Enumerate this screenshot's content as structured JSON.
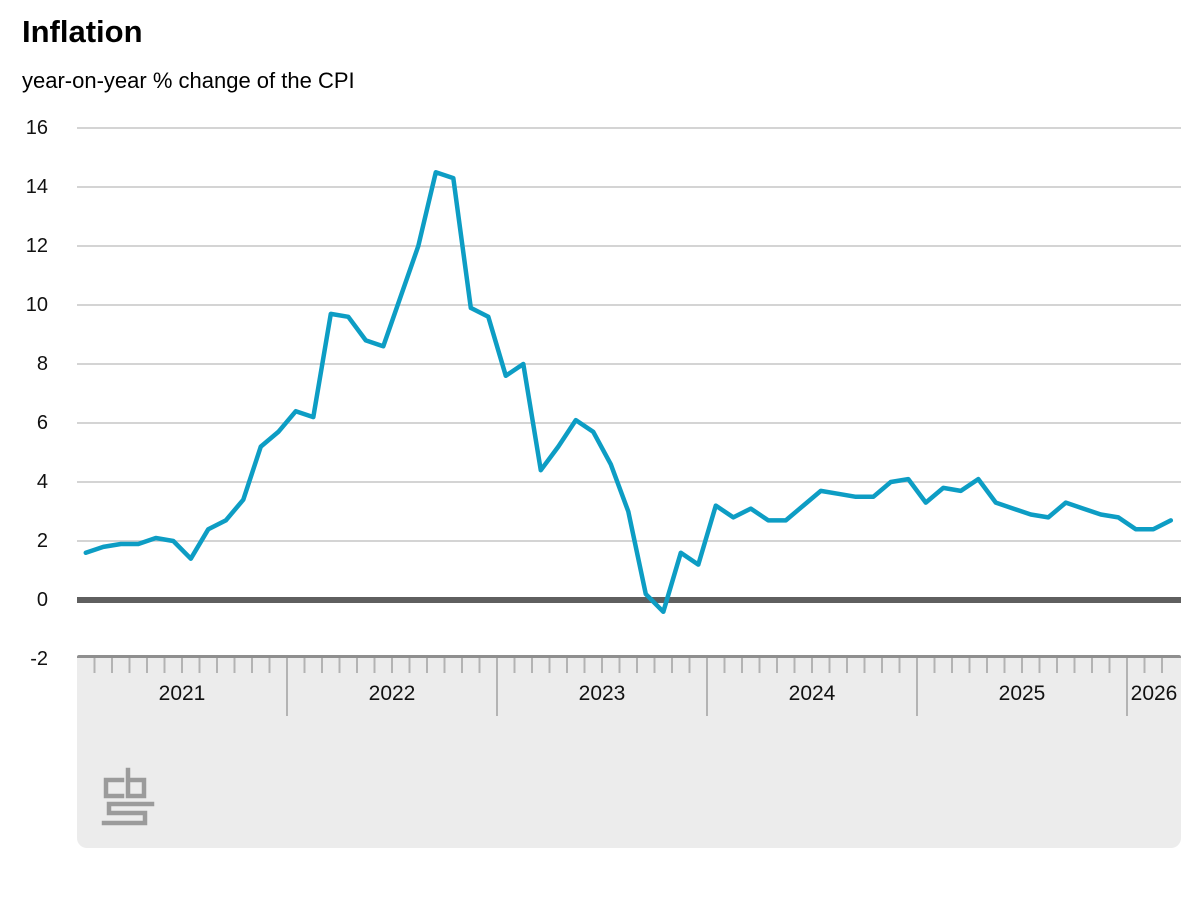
{
  "header": {
    "title": "Inflation",
    "subtitle": "year-on-year % change of the CPI"
  },
  "chart_data": {
    "type": "line",
    "title": "Inflation",
    "subtitle": "year-on-year % change of the CPI",
    "series_name": "CPI year-on-year % change",
    "unit": "%",
    "x": [
      "2021-01",
      "2021-02",
      "2021-03",
      "2021-04",
      "2021-05",
      "2021-06",
      "2021-07",
      "2021-08",
      "2021-09",
      "2021-10",
      "2021-11",
      "2021-12",
      "2022-01",
      "2022-02",
      "2022-03",
      "2022-04",
      "2022-05",
      "2022-06",
      "2022-07",
      "2022-08",
      "2022-09",
      "2022-10",
      "2022-11",
      "2022-12",
      "2023-01",
      "2023-02",
      "2023-03",
      "2023-04",
      "2023-05",
      "2023-06",
      "2023-07",
      "2023-08",
      "2023-09",
      "2023-10",
      "2023-11",
      "2023-12",
      "2024-01",
      "2024-02",
      "2024-03",
      "2024-04",
      "2024-05",
      "2024-06",
      "2024-07",
      "2024-08",
      "2024-09",
      "2024-10",
      "2024-11",
      "2024-12",
      "2025-01",
      "2025-02",
      "2025-03",
      "2025-04",
      "2025-05",
      "2025-06",
      "2025-07",
      "2025-08",
      "2025-09",
      "2025-10",
      "2025-11",
      "2025-12",
      "2026-01",
      "2026-02",
      "2026-03"
    ],
    "values": [
      1.6,
      1.8,
      1.9,
      1.9,
      2.1,
      2.0,
      1.4,
      2.4,
      2.7,
      3.4,
      5.2,
      5.7,
      6.4,
      6.2,
      9.7,
      9.6,
      8.8,
      8.6,
      10.3,
      12.0,
      14.5,
      14.3,
      9.9,
      9.6,
      7.6,
      8.0,
      4.4,
      5.2,
      6.1,
      5.7,
      4.6,
      3.0,
      0.2,
      -0.4,
      1.6,
      1.2,
      3.2,
      2.8,
      3.1,
      2.7,
      2.7,
      3.2,
      3.7,
      3.6,
      3.5,
      3.5,
      4.0,
      4.1,
      3.3,
      3.8,
      3.7,
      4.1,
      3.3,
      3.1,
      2.9,
      2.8,
      3.3,
      3.1,
      2.9,
      2.8,
      2.4,
      2.4,
      2.7
    ],
    "ylim": [
      -2,
      16
    ],
    "yticks": [
      16,
      14,
      12,
      10,
      8,
      6,
      4,
      2,
      0,
      -2
    ],
    "year_labels": [
      "2021",
      "2022",
      "2023",
      "2024",
      "2025",
      "2026"
    ],
    "grid": "horizontal",
    "zero_line_emphasized": true,
    "legend": "none",
    "colors": {
      "line": "#0d9dc4",
      "gridline": "#c6c6c6",
      "zero_line": "#5f5f5f",
      "axis_band_fill": "#ececec",
      "axis_band_border": "#8f8f8f",
      "tick": "#b3b3b3",
      "text": "#000000",
      "logo": "#9b9b9b"
    }
  },
  "footer": {
    "logo_name": "cbs-logo"
  }
}
